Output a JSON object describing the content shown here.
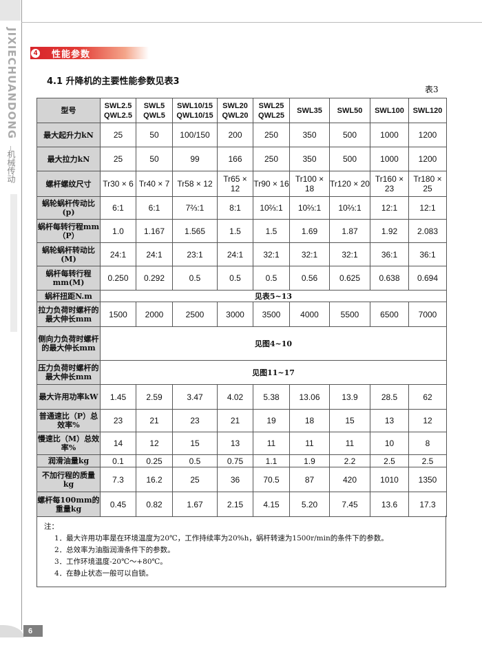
{
  "sidebar": {
    "brand": "JIXIECHUANDONG",
    "category": "机械传动"
  },
  "section": {
    "number": "4",
    "title": "性能参数"
  },
  "subtitle": "4.1 升降机的主要性能参数见表3",
  "table_label": "表3",
  "table": {
    "header_label": "型号",
    "models": [
      "SWL2.5 QWL2.5",
      "SWL5 QWL5",
      "SWL10/15 QWL10/15",
      "SWL20 QWL20",
      "SWL25 QWL25",
      "SWL35",
      "SWL50",
      "SWL100",
      "SWL120"
    ],
    "rows": [
      {
        "label": "最大起升力kN",
        "values": [
          "25",
          "50",
          "100/150",
          "200",
          "250",
          "350",
          "500",
          "1000",
          "1200"
        ]
      },
      {
        "label": "最大拉力kN",
        "values": [
          "25",
          "50",
          "99",
          "166",
          "250",
          "350",
          "500",
          "1000",
          "1200"
        ]
      },
      {
        "label": "螺杆螺纹尺寸",
        "values": [
          "Tr30 × 6",
          "Tr40 × 7",
          "Tr58 × 12",
          "Tr65 × 12",
          "Tr90 × 16",
          "Tr100 × 18",
          "Tr120 × 20",
          "Tr160 × 23",
          "Tr180 × 25"
        ]
      },
      {
        "label": "蜗轮蜗杆传动比(p)",
        "values": [
          "6:1",
          "6:1",
          "7⅔:1",
          "8:1",
          "10⅔:1",
          "10⅔:1",
          "10⅔:1",
          "12:1",
          "12:1"
        ]
      },
      {
        "label": "蜗杆每转行程mm（P）",
        "values": [
          "1.0",
          "1.167",
          "1.565",
          "1.5",
          "1.5",
          "1.69",
          "1.87",
          "1.92",
          "2.083"
        ]
      },
      {
        "label": "蜗轮蜗杆转动比(M)",
        "values": [
          "24:1",
          "24:1",
          "23:1",
          "24:1",
          "32:1",
          "32:1",
          "32:1",
          "36:1",
          "36:1"
        ]
      },
      {
        "label": "蜗杆每转行程mm(M)",
        "values": [
          "0.250",
          "0.292",
          "0.5",
          "0.5",
          "0.5",
          "0.56",
          "0.625",
          "0.638",
          "0.694"
        ]
      },
      {
        "label": "蜗杆扭距N.m",
        "span": "见表5~13"
      },
      {
        "label": "拉力负荷时螺杆的最大伸长mm",
        "values": [
          "1500",
          "2000",
          "2500",
          "3000",
          "3500",
          "4000",
          "5500",
          "6500",
          "7000"
        ]
      },
      {
        "label": "侧向力负荷时螺杆的最大伸长mm",
        "span": "见图4~10"
      },
      {
        "label": "压力负荷时螺杆的最大伸长mm",
        "span": "见图11~17"
      },
      {
        "label": "最大许用功率kW",
        "values": [
          "1.45",
          "2.59",
          "3.47",
          "4.02",
          "5.38",
          "13.06",
          "13.9",
          "28.5",
          "62"
        ]
      },
      {
        "label": "普通速比（P）总效率%",
        "values": [
          "23",
          "21",
          "23",
          "21",
          "19",
          "18",
          "15",
          "13",
          "12"
        ]
      },
      {
        "label": "慢速比（M）总效率%",
        "values": [
          "14",
          "12",
          "15",
          "13",
          "11",
          "11",
          "11",
          "10",
          "8"
        ]
      },
      {
        "label": "润滑油量kg",
        "values": [
          "0.1",
          "0.25",
          "0.5",
          "0.75",
          "1.1",
          "1.9",
          "2.2",
          "2.5",
          "2.5"
        ]
      },
      {
        "label": "不加行程的质量kg",
        "values": [
          "7.3",
          "16.2",
          "25",
          "36",
          "70.5",
          "87",
          "420",
          "1010",
          "1350"
        ]
      },
      {
        "label": "螺杆每100mm的重量kg",
        "values": [
          "0.45",
          "0.82",
          "1.67",
          "2.15",
          "4.15",
          "5.20",
          "7.45",
          "13.6",
          "17.3"
        ]
      }
    ]
  },
  "notes": {
    "title": "注：",
    "items": [
      "1．最大许用功率是在环境温度为20℃，工作持续率为20%h，蜗杆转速为1500r/min的条件下的参数。",
      "2．总效率为油脂润滑条件下的参数。",
      "3．工作环境温度-20℃～+80℃。",
      "4．在静止状态一般可以自锁。"
    ]
  },
  "page_number": "6"
}
